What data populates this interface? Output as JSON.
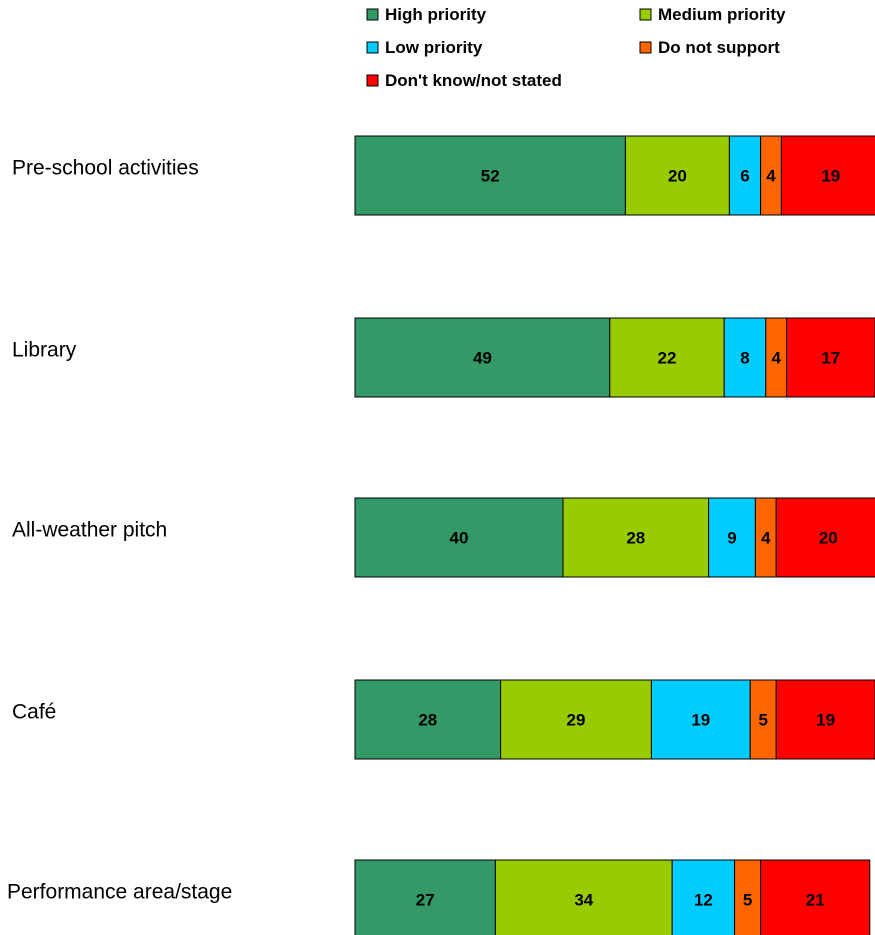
{
  "chart_data": {
    "type": "bar",
    "orientation": "horizontal",
    "stacked": true,
    "categories": [
      "Pre-school activities",
      "Library",
      "All-weather  pitch",
      "Café",
      "Performance area/stage"
    ],
    "series": [
      {
        "name": "High priority",
        "color": "#339966",
        "values": [
          52,
          49,
          40,
          28,
          27
        ]
      },
      {
        "name": "Medium priority",
        "color": "#99CC00",
        "values": [
          20,
          22,
          28,
          29,
          34
        ]
      },
      {
        "name": "Low priority",
        "color": "#00CCFF",
        "values": [
          6,
          8,
          9,
          19,
          12
        ]
      },
      {
        "name": "Do not support",
        "color": "#FF6600",
        "values": [
          4,
          4,
          4,
          5,
          5
        ]
      },
      {
        "name": "Don't know/not stated",
        "color": "#FF0000",
        "values": [
          19,
          17,
          20,
          19,
          21
        ]
      }
    ],
    "xlim": [
      0,
      100
    ],
    "legend_position": "top",
    "grid": false
  }
}
